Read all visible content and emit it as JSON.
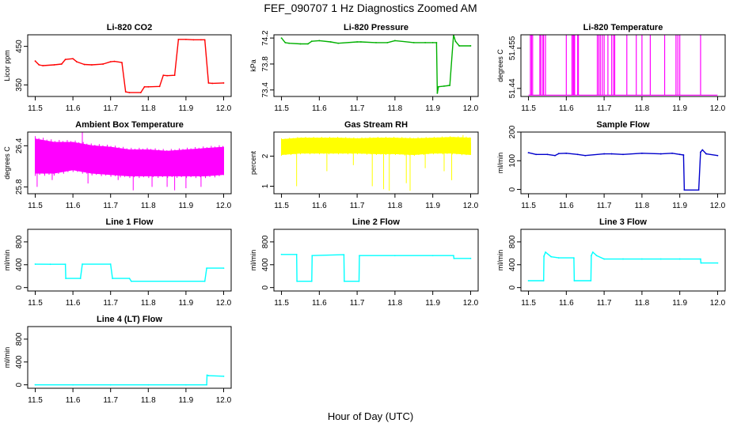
{
  "figure": {
    "title": "FEF_090707  1 Hz Diagnostics Zoomed AM",
    "xlabel": "Hour of Day (UTC)"
  },
  "colors": {
    "co2": "#ff0000",
    "pressure": "#00b000",
    "temperature": "#ff00ff",
    "box_temperature": "#ff00ff",
    "rh": "#ffff00",
    "sample_flow": "#0000cc",
    "line_flows": "#00ffff"
  },
  "chart_data": [
    {
      "type": "line",
      "title": "Li-820 CO2",
      "xlabel": "",
      "ylabel": "Licor ppm",
      "color": "#ff0000",
      "xlim": [
        11.48,
        12.02
      ],
      "ylim": [
        320,
        480
      ],
      "xticks": [
        "11.5",
        "11.6",
        "11.7",
        "11.8",
        "11.9",
        "12.0"
      ],
      "yticks": [
        350,
        450
      ],
      "x": [
        11.5,
        11.51,
        11.52,
        11.55,
        11.57,
        11.58,
        11.6,
        11.61,
        11.63,
        11.65,
        11.68,
        11.7,
        11.71,
        11.73,
        11.74,
        11.75,
        11.78,
        11.79,
        11.8,
        11.83,
        11.84,
        11.85,
        11.87,
        11.88,
        11.9,
        11.92,
        11.94,
        11.95,
        11.96,
        11.97,
        12.0
      ],
      "y": [
        412,
        402,
        400,
        402,
        404,
        416,
        418,
        410,
        403,
        402,
        404,
        410,
        411,
        408,
        332,
        330,
        330,
        345,
        345,
        346,
        375,
        374,
        375,
        468,
        468,
        467,
        467,
        467,
        355,
        354,
        355
      ]
    },
    {
      "type": "line",
      "title": "Li-820 Pressure",
      "xlabel": "",
      "ylabel": "kPa",
      "color": "#00b000",
      "xlim": [
        11.48,
        12.02
      ],
      "ylim": [
        73.3,
        74.25
      ],
      "xticks": [
        "11.5",
        "11.6",
        "11.7",
        "11.8",
        "11.9",
        "12.0"
      ],
      "yticks": [
        73.4,
        73.8,
        74.2
      ],
      "x": [
        11.5,
        11.51,
        11.52,
        11.55,
        11.57,
        11.58,
        11.6,
        11.63,
        11.65,
        11.7,
        11.71,
        11.75,
        11.78,
        11.8,
        11.85,
        11.88,
        11.9,
        11.91,
        11.912,
        11.915,
        11.93,
        11.945,
        11.955,
        11.96,
        11.97,
        12.0
      ],
      "y": [
        74.2,
        74.13,
        74.12,
        74.11,
        74.11,
        74.15,
        74.16,
        74.14,
        74.12,
        74.14,
        74.14,
        74.13,
        74.13,
        74.16,
        74.13,
        74.13,
        74.13,
        74.13,
        73.35,
        73.45,
        73.46,
        73.47,
        74.25,
        74.15,
        74.08,
        74.08
      ]
    },
    {
      "type": "line",
      "title": "Li-820 Temperature",
      "xlabel": "",
      "ylabel": "degrees C",
      "color": "#ff00ff",
      "xlim": [
        11.48,
        12.02
      ],
      "ylim": [
        51.437,
        51.46
      ],
      "xticks": [
        "11.5",
        "11.6",
        "11.7",
        "11.8",
        "11.9",
        "12.0"
      ],
      "yticks": [
        51.44,
        51.455
      ],
      "baseline": 51.4375,
      "high": 51.46,
      "spikes": [
        11.505,
        11.508,
        11.511,
        11.53,
        11.533,
        11.538,
        11.54,
        11.545,
        11.6,
        11.615,
        11.618,
        11.62,
        11.622,
        11.63,
        11.632,
        11.682,
        11.686,
        11.69,
        11.695,
        11.7,
        11.71,
        11.72,
        11.725,
        11.728,
        11.76,
        11.785,
        11.8,
        11.822,
        11.86,
        11.89,
        11.895,
        11.9,
        11.955
      ]
    },
    {
      "type": "band",
      "title": "Ambient Box Temperature",
      "xlabel": "",
      "ylabel": "degrees C",
      "color": "#ff00ff",
      "xlim": [
        11.48,
        12.02
      ],
      "ylim": [
        25.7,
        26.6
      ],
      "xticks": [
        "11.5",
        "11.6",
        "11.7",
        "11.8",
        "11.9",
        "12.0"
      ],
      "yticks": [
        25.8,
        26.4
      ],
      "x": [
        11.5,
        11.55,
        11.6,
        11.65,
        11.7,
        11.75,
        11.8,
        11.85,
        11.9,
        11.95,
        12.0
      ],
      "low": [
        26.0,
        26.0,
        26.05,
        26.0,
        25.98,
        25.96,
        25.96,
        25.96,
        25.96,
        25.96,
        25.98
      ],
      "high": [
        26.5,
        26.45,
        26.45,
        26.4,
        26.38,
        26.34,
        26.34,
        26.32,
        26.34,
        26.36,
        26.38
      ],
      "mid": [
        26.28,
        26.26,
        26.25,
        26.22,
        26.2,
        26.17,
        26.16,
        26.15,
        26.16,
        26.17,
        26.18
      ],
      "spikes": [
        [
          11.505,
          25.8
        ],
        [
          11.545,
          25.9
        ],
        [
          11.625,
          26.62
        ],
        [
          11.64,
          25.85
        ],
        [
          11.72,
          25.9
        ],
        [
          11.76,
          25.75
        ],
        [
          11.81,
          25.8
        ],
        [
          11.85,
          25.8
        ],
        [
          11.87,
          25.75
        ],
        [
          11.9,
          25.78
        ],
        [
          11.94,
          25.8
        ]
      ]
    },
    {
      "type": "band",
      "title": "Gas Stream RH",
      "xlabel": "",
      "ylabel": "percent",
      "color": "#ffff00",
      "xlim": [
        11.48,
        12.02
      ],
      "ylim": [
        0.75,
        2.8
      ],
      "xticks": [
        "11.5",
        "11.6",
        "11.7",
        "11.8",
        "11.9",
        "12.0"
      ],
      "yticks": [
        1.0,
        2.0
      ],
      "x": [
        11.5,
        11.55,
        11.6,
        11.65,
        11.7,
        11.75,
        11.8,
        11.85,
        11.9,
        11.95,
        12.0
      ],
      "low": [
        2.05,
        2.1,
        2.1,
        2.1,
        2.1,
        2.08,
        2.08,
        2.05,
        2.1,
        2.1,
        2.05
      ],
      "high": [
        2.55,
        2.6,
        2.6,
        2.6,
        2.58,
        2.6,
        2.6,
        2.58,
        2.6,
        2.62,
        2.6
      ],
      "mid": [
        2.32,
        2.35,
        2.36,
        2.36,
        2.34,
        2.35,
        2.35,
        2.33,
        2.36,
        2.37,
        2.34
      ],
      "spikes": [
        [
          11.54,
          1.0
        ],
        [
          11.62,
          1.5
        ],
        [
          11.69,
          1.7
        ],
        [
          11.74,
          1.0
        ],
        [
          11.77,
          0.9
        ],
        [
          11.785,
          0.85
        ],
        [
          11.83,
          1.1
        ],
        [
          11.84,
          0.85
        ],
        [
          11.88,
          1.6
        ],
        [
          11.93,
          1.5
        ],
        [
          11.95,
          1.2
        ],
        [
          11.98,
          2.7
        ]
      ]
    },
    {
      "type": "line",
      "title": "Sample Flow",
      "xlabel": "",
      "ylabel": "ml/min",
      "color": "#0000cc",
      "xlim": [
        11.48,
        12.02
      ],
      "ylim": [
        -15,
        200
      ],
      "xticks": [
        "11.5",
        "11.6",
        "11.7",
        "11.8",
        "11.9",
        "12.0"
      ],
      "yticks": [
        0,
        100,
        200
      ],
      "x": [
        11.5,
        11.52,
        11.55,
        11.57,
        11.58,
        11.6,
        11.63,
        11.65,
        11.7,
        11.72,
        11.75,
        11.8,
        11.85,
        11.88,
        11.9,
        11.91,
        11.912,
        11.95,
        11.955,
        11.96,
        11.97,
        12.0
      ],
      "y": [
        128,
        122,
        122,
        118,
        125,
        126,
        122,
        118,
        124,
        124,
        122,
        126,
        124,
        126,
        122,
        120,
        -2,
        -2,
        130,
        138,
        124,
        118
      ]
    },
    {
      "type": "line",
      "title": "Line 1 Flow",
      "xlabel": "",
      "ylabel": "ml/min",
      "color": "#00ffff",
      "xlim": [
        11.48,
        12.02
      ],
      "ylim": [
        -60,
        1020
      ],
      "xticks": [
        "11.5",
        "11.6",
        "11.7",
        "11.8",
        "11.9",
        "12.0"
      ],
      "yticks": [
        0,
        400,
        800
      ],
      "x": [
        11.5,
        11.54,
        11.58,
        11.581,
        11.62,
        11.625,
        11.7,
        11.705,
        11.75,
        11.755,
        11.95,
        11.955,
        12.0
      ],
      "y": [
        410,
        408,
        408,
        160,
        160,
        410,
        410,
        160,
        160,
        110,
        110,
        340,
        340
      ]
    },
    {
      "type": "line",
      "title": "Line 2 Flow",
      "xlabel": "",
      "ylabel": "ml/min",
      "color": "#00ffff",
      "xlim": [
        11.48,
        12.02
      ],
      "ylim": [
        -60,
        1020
      ],
      "xticks": [
        "11.5",
        "11.6",
        "11.7",
        "11.8",
        "11.9",
        "12.0"
      ],
      "yticks": [
        0,
        400,
        800
      ],
      "x": [
        11.5,
        11.54,
        11.541,
        11.58,
        11.581,
        11.665,
        11.666,
        11.705,
        11.706,
        11.8,
        11.9,
        11.955,
        11.956,
        12.0
      ],
      "y": [
        580,
        580,
        110,
        110,
        560,
        575,
        110,
        110,
        560,
        560,
        560,
        560,
        510,
        510
      ]
    },
    {
      "type": "line",
      "title": "Line 3 Flow",
      "xlabel": "",
      "ylabel": "ml/min",
      "color": "#00ffff",
      "xlim": [
        11.48,
        12.02
      ],
      "ylim": [
        -60,
        1020
      ],
      "xticks": [
        "11.5",
        "11.6",
        "11.7",
        "11.8",
        "11.9",
        "12.0"
      ],
      "yticks": [
        0,
        400,
        800
      ],
      "x": [
        11.5,
        11.54,
        11.541,
        11.545,
        11.56,
        11.58,
        11.62,
        11.621,
        11.665,
        11.666,
        11.67,
        11.68,
        11.7,
        11.75,
        11.8,
        11.85,
        11.9,
        11.955,
        11.956,
        12.0
      ],
      "y": [
        120,
        120,
        550,
        620,
        540,
        520,
        520,
        120,
        120,
        560,
        620,
        560,
        500,
        500,
        500,
        500,
        500,
        500,
        430,
        430
      ]
    },
    {
      "type": "line",
      "title": "Line 4 (LT) Flow",
      "xlabel": "",
      "ylabel": "ml/min",
      "color": "#00ffff",
      "xlim": [
        11.48,
        12.02
      ],
      "ylim": [
        -60,
        1020
      ],
      "xticks": [
        "11.5",
        "11.6",
        "11.7",
        "11.8",
        "11.9",
        "12.0"
      ],
      "yticks": [
        0,
        400,
        800
      ],
      "x": [
        11.5,
        11.6,
        11.7,
        11.8,
        11.9,
        11.955,
        11.956,
        11.96,
        12.0
      ],
      "y": [
        0,
        0,
        0,
        0,
        0,
        0,
        170,
        160,
        150
      ]
    }
  ]
}
